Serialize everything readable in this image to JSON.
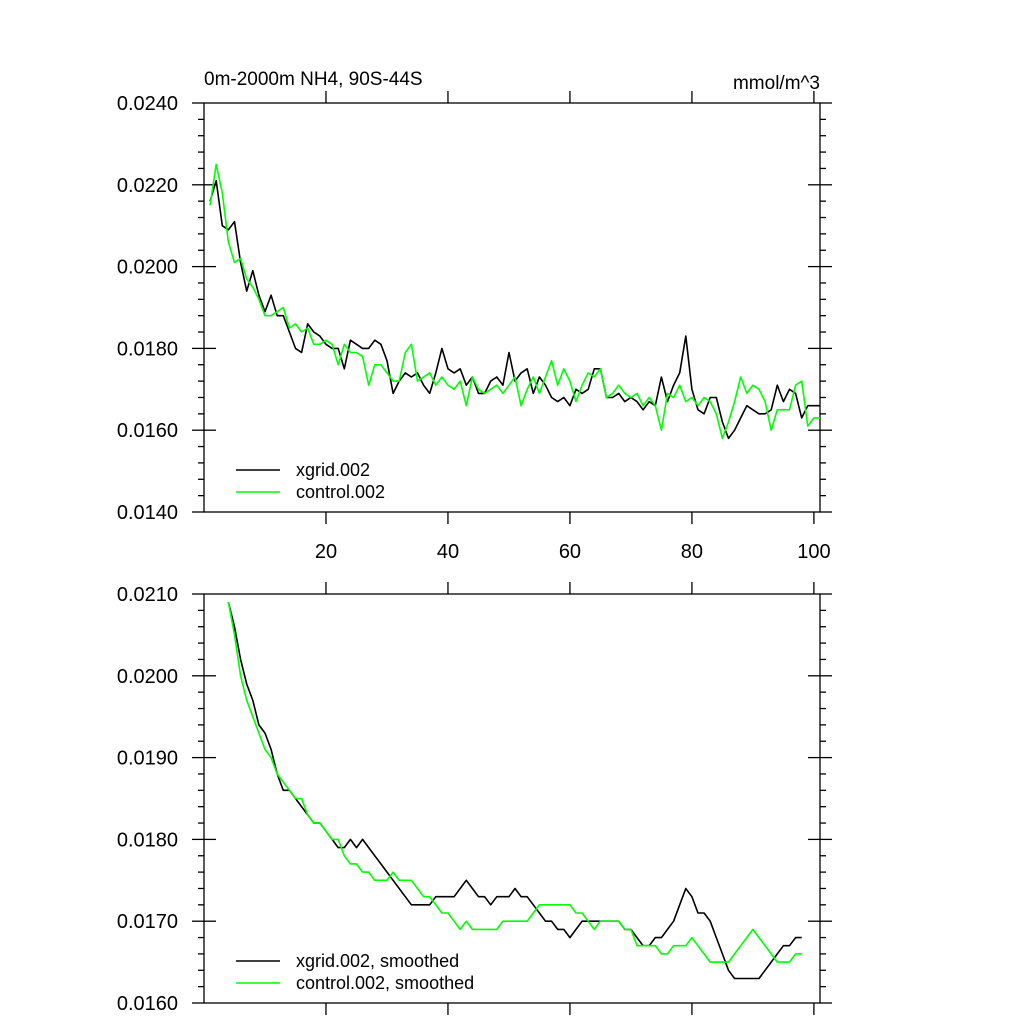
{
  "chart_data": [
    {
      "type": "line",
      "title_left": "0m-2000m NH4, 90S-44S",
      "title_right": "mmol/m^3",
      "xlabel": "",
      "ylabel": "",
      "xlim": [
        0,
        101
      ],
      "ylim": [
        0.014,
        0.024
      ],
      "xticks": [
        20,
        40,
        60,
        80,
        100
      ],
      "xticklabels": [
        "20",
        "40",
        "60",
        "80",
        "100"
      ],
      "yticks": [
        0.014,
        0.016,
        0.018,
        0.02,
        0.022,
        0.024
      ],
      "yticklabels": [
        "0.0140",
        "0.0160",
        "0.0180",
        "0.0200",
        "0.0220",
        "0.0240"
      ],
      "legend_position": "bottom-left",
      "series": [
        {
          "name": "xgrid.002",
          "color": "#000000",
          "x": [
            1,
            2,
            3,
            4,
            5,
            6,
            7,
            8,
            9,
            10,
            11,
            12,
            13,
            14,
            15,
            16,
            17,
            18,
            19,
            20,
            21,
            22,
            23,
            24,
            25,
            26,
            27,
            28,
            29,
            30,
            31,
            32,
            33,
            34,
            35,
            36,
            37,
            38,
            39,
            40,
            41,
            42,
            43,
            44,
            45,
            46,
            47,
            48,
            49,
            50,
            51,
            52,
            53,
            54,
            55,
            56,
            57,
            58,
            59,
            60,
            61,
            62,
            63,
            64,
            65,
            66,
            67,
            68,
            69,
            70,
            71,
            72,
            73,
            74,
            75,
            76,
            77,
            78,
            79,
            80,
            81,
            82,
            83,
            84,
            85,
            86,
            87,
            88,
            89,
            90,
            91,
            92,
            93,
            94,
            95,
            96,
            97,
            98,
            99,
            100,
            101
          ],
          "y": [
            0.0216,
            0.0221,
            0.021,
            0.0209,
            0.0211,
            0.0201,
            0.0194,
            0.0199,
            0.0193,
            0.0189,
            0.0193,
            0.0188,
            0.0188,
            0.0184,
            0.018,
            0.0179,
            0.0186,
            0.0184,
            0.0183,
            0.0181,
            0.018,
            0.018,
            0.0175,
            0.0182,
            0.0181,
            0.018,
            0.018,
            0.0182,
            0.0181,
            0.0177,
            0.0169,
            0.0172,
            0.0174,
            0.0173,
            0.0174,
            0.0171,
            0.0169,
            0.0174,
            0.018,
            0.0175,
            0.0174,
            0.0175,
            0.0171,
            0.0173,
            0.0169,
            0.0169,
            0.0172,
            0.0173,
            0.0171,
            0.0179,
            0.0172,
            0.0174,
            0.0175,
            0.0169,
            0.0173,
            0.0171,
            0.0168,
            0.0167,
            0.0168,
            0.0166,
            0.017,
            0.0169,
            0.017,
            0.0175,
            0.0175,
            0.0168,
            0.0168,
            0.0169,
            0.0167,
            0.0168,
            0.0167,
            0.0165,
            0.0167,
            0.0166,
            0.0173,
            0.0167,
            0.0171,
            0.0174,
            0.0183,
            0.017,
            0.0165,
            0.0164,
            0.0168,
            0.0168,
            0.0162,
            0.0158,
            0.016,
            0.0163,
            0.0166,
            0.0165,
            0.0164,
            0.0164,
            0.0165,
            0.0171,
            0.0167,
            0.017,
            0.0169,
            0.0163,
            0.0166,
            0.0166,
            0.0166
          ]
        },
        {
          "name": "control.002",
          "color": "#00ff00",
          "x": [
            1,
            2,
            3,
            4,
            5,
            6,
            7,
            8,
            9,
            10,
            11,
            12,
            13,
            14,
            15,
            16,
            17,
            18,
            19,
            20,
            21,
            22,
            23,
            24,
            25,
            26,
            27,
            28,
            29,
            30,
            31,
            32,
            33,
            34,
            35,
            36,
            37,
            38,
            39,
            40,
            41,
            42,
            43,
            44,
            45,
            46,
            47,
            48,
            49,
            50,
            51,
            52,
            53,
            54,
            55,
            56,
            57,
            58,
            59,
            60,
            61,
            62,
            63,
            64,
            65,
            66,
            67,
            68,
            69,
            70,
            71,
            72,
            73,
            74,
            75,
            76,
            77,
            78,
            79,
            80,
            81,
            82,
            83,
            84,
            85,
            86,
            87,
            88,
            89,
            90,
            91,
            92,
            93,
            94,
            95,
            96,
            97,
            98,
            99,
            100,
            101
          ],
          "y": [
            0.0215,
            0.0225,
            0.0218,
            0.0206,
            0.0201,
            0.0202,
            0.0197,
            0.0195,
            0.0192,
            0.0188,
            0.0188,
            0.0189,
            0.019,
            0.0185,
            0.0186,
            0.0184,
            0.0185,
            0.0181,
            0.0181,
            0.0182,
            0.0181,
            0.0176,
            0.0181,
            0.0179,
            0.0179,
            0.0178,
            0.0171,
            0.0176,
            0.0176,
            0.0174,
            0.0172,
            0.0172,
            0.0179,
            0.0181,
            0.0172,
            0.0173,
            0.0174,
            0.0171,
            0.0173,
            0.0171,
            0.017,
            0.0172,
            0.0166,
            0.0173,
            0.017,
            0.0169,
            0.017,
            0.0171,
            0.0169,
            0.0171,
            0.0173,
            0.0166,
            0.017,
            0.0173,
            0.0169,
            0.0173,
            0.0177,
            0.0171,
            0.0175,
            0.0172,
            0.0167,
            0.0171,
            0.0174,
            0.0173,
            0.0175,
            0.0168,
            0.0169,
            0.0171,
            0.0169,
            0.0168,
            0.0169,
            0.0166,
            0.0168,
            0.0166,
            0.016,
            0.0169,
            0.0168,
            0.0171,
            0.0167,
            0.0168,
            0.0166,
            0.0168,
            0.0167,
            0.0164,
            0.0158,
            0.0162,
            0.0167,
            0.0173,
            0.0169,
            0.0171,
            0.017,
            0.0167,
            0.016,
            0.0165,
            0.0165,
            0.0165,
            0.0171,
            0.0172,
            0.0161,
            0.0163,
            0.0163
          ]
        }
      ]
    },
    {
      "type": "line",
      "title_left": "",
      "title_right": "",
      "xlabel": "",
      "ylabel": "",
      "xlim": [
        0,
        101
      ],
      "ylim": [
        0.016,
        0.021
      ],
      "xticks": [
        20,
        40,
        60,
        80,
        100
      ],
      "xticklabels": [],
      "yticks": [
        0.016,
        0.017,
        0.018,
        0.019,
        0.02,
        0.021
      ],
      "yticklabels": [
        "0.0160",
        "0.0170",
        "0.0180",
        "0.0190",
        "0.0200",
        "0.0210"
      ],
      "legend_position": "bottom-left",
      "series": [
        {
          "name": "xgrid.002, smoothed",
          "color": "#000000",
          "x": [
            4,
            5,
            6,
            7,
            8,
            9,
            10,
            11,
            12,
            13,
            14,
            15,
            16,
            17,
            18,
            19,
            20,
            21,
            22,
            23,
            24,
            25,
            26,
            27,
            28,
            29,
            30,
            31,
            32,
            33,
            34,
            35,
            36,
            37,
            38,
            39,
            40,
            41,
            42,
            43,
            44,
            45,
            46,
            47,
            48,
            49,
            50,
            51,
            52,
            53,
            54,
            55,
            56,
            57,
            58,
            59,
            60,
            61,
            62,
            63,
            64,
            65,
            66,
            67,
            68,
            69,
            70,
            71,
            72,
            73,
            74,
            75,
            76,
            77,
            78,
            79,
            80,
            81,
            82,
            83,
            84,
            85,
            86,
            87,
            88,
            89,
            90,
            91,
            92,
            93,
            94,
            95,
            96,
            97,
            98
          ],
          "y": [
            0.0209,
            0.0206,
            0.0202,
            0.0199,
            0.0197,
            0.0194,
            0.0193,
            0.0191,
            0.0188,
            0.0186,
            0.0186,
            0.0185,
            0.0184,
            0.0183,
            0.0182,
            0.0182,
            0.0181,
            0.018,
            0.0179,
            0.0179,
            0.018,
            0.0179,
            0.018,
            0.0179,
            0.0178,
            0.0177,
            0.0176,
            0.0175,
            0.0174,
            0.0173,
            0.0172,
            0.0172,
            0.0172,
            0.0172,
            0.0173,
            0.0173,
            0.0173,
            0.0173,
            0.0174,
            0.0175,
            0.0174,
            0.0173,
            0.0173,
            0.0172,
            0.0173,
            0.0173,
            0.0173,
            0.0174,
            0.0173,
            0.0173,
            0.0172,
            0.0171,
            0.017,
            0.017,
            0.0169,
            0.0169,
            0.0168,
            0.0169,
            0.017,
            0.017,
            0.017,
            0.017,
            0.017,
            0.017,
            0.017,
            0.0169,
            0.0169,
            0.0168,
            0.0167,
            0.0167,
            0.0168,
            0.0168,
            0.0169,
            0.017,
            0.0172,
            0.0174,
            0.0173,
            0.0171,
            0.0171,
            0.017,
            0.0168,
            0.0166,
            0.0164,
            0.0163,
            0.0163,
            0.0163,
            0.0163,
            0.0163,
            0.0164,
            0.0165,
            0.0166,
            0.0167,
            0.0167,
            0.0168,
            0.0168
          ]
        },
        {
          "name": "control.002, smoothed",
          "color": "#00ff00",
          "x": [
            4,
            5,
            6,
            7,
            8,
            9,
            10,
            11,
            12,
            13,
            14,
            15,
            16,
            17,
            18,
            19,
            20,
            21,
            22,
            23,
            24,
            25,
            26,
            27,
            28,
            29,
            30,
            31,
            32,
            33,
            34,
            35,
            36,
            37,
            38,
            39,
            40,
            41,
            42,
            43,
            44,
            45,
            46,
            47,
            48,
            49,
            50,
            51,
            52,
            53,
            54,
            55,
            56,
            57,
            58,
            59,
            60,
            61,
            62,
            63,
            64,
            65,
            66,
            67,
            68,
            69,
            70,
            71,
            72,
            73,
            74,
            75,
            76,
            77,
            78,
            79,
            80,
            81,
            82,
            83,
            84,
            85,
            86,
            87,
            88,
            89,
            90,
            91,
            92,
            93,
            94,
            95,
            96,
            97,
            98
          ],
          "y": [
            0.0209,
            0.0205,
            0.02,
            0.0197,
            0.0195,
            0.0193,
            0.0191,
            0.019,
            0.0188,
            0.0187,
            0.0186,
            0.0185,
            0.0185,
            0.0183,
            0.0182,
            0.0182,
            0.0181,
            0.018,
            0.018,
            0.0178,
            0.0177,
            0.0177,
            0.0176,
            0.0176,
            0.0175,
            0.0175,
            0.0175,
            0.0176,
            0.0175,
            0.0175,
            0.0175,
            0.0174,
            0.0173,
            0.0173,
            0.0172,
            0.0171,
            0.0171,
            0.017,
            0.0169,
            0.017,
            0.0169,
            0.0169,
            0.0169,
            0.0169,
            0.0169,
            0.017,
            0.017,
            0.017,
            0.017,
            0.017,
            0.0171,
            0.0172,
            0.0172,
            0.0172,
            0.0172,
            0.0172,
            0.0172,
            0.0171,
            0.0171,
            0.017,
            0.0169,
            0.017,
            0.017,
            0.017,
            0.017,
            0.0169,
            0.0169,
            0.0167,
            0.0167,
            0.0167,
            0.0167,
            0.0166,
            0.0166,
            0.0167,
            0.0167,
            0.0167,
            0.0168,
            0.0167,
            0.0166,
            0.0165,
            0.0165,
            0.0165,
            0.0165,
            0.0166,
            0.0167,
            0.0168,
            0.0169,
            0.0168,
            0.0167,
            0.0166,
            0.0165,
            0.0165,
            0.0165,
            0.0166,
            0.0166
          ]
        }
      ]
    }
  ]
}
